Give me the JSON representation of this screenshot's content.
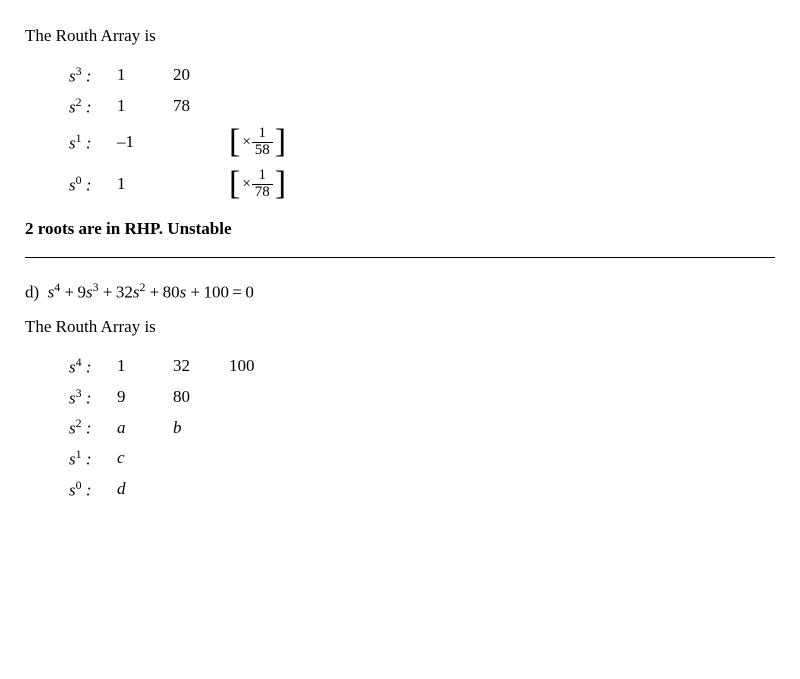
{
  "part_c": {
    "heading": "The Routh Array is",
    "rows": [
      {
        "power_base": "s",
        "power_exp": "3",
        "c1": "1",
        "c2": "20",
        "note_num": "",
        "note_den": ""
      },
      {
        "power_base": "s",
        "power_exp": "2",
        "c1": "1",
        "c2": "78",
        "note_num": "",
        "note_den": ""
      },
      {
        "power_base": "s",
        "power_exp": "1",
        "c1": "–1",
        "c2": "",
        "note_num": "1",
        "note_den": "58"
      },
      {
        "power_base": "s",
        "power_exp": "0",
        "c1": "1",
        "c2": "",
        "note_num": "1",
        "note_den": "78"
      }
    ],
    "conclusion": "2 roots are in RHP. Unstable"
  },
  "part_d": {
    "label": "d) ",
    "equation_parts": {
      "t1a": "s",
      "t1e": "4",
      "t2c": "+ 9",
      "t2a": "s",
      "t2e": "3",
      "t3c": "+ 32",
      "t3a": "s",
      "t3e": "2",
      "t4": "+ 80",
      "t4a": "s",
      "t5": "+ 100 = 0"
    },
    "heading": "The Routh Array is",
    "rows": [
      {
        "power_base": "s",
        "power_exp": "4",
        "c1": "1",
        "c2": "32",
        "c3": "100"
      },
      {
        "power_base": "s",
        "power_exp": "3",
        "c1": "9",
        "c2": "80",
        "c3": ""
      },
      {
        "power_base": "s",
        "power_exp": "2",
        "c1": "a",
        "c2": "b",
        "c3": "",
        "c1_ital": true,
        "c2_ital": true
      },
      {
        "power_base": "s",
        "power_exp": "1",
        "c1": "c",
        "c2": "",
        "c3": "",
        "c1_ital": true
      },
      {
        "power_base": "s",
        "power_exp": "0",
        "c1": "d",
        "c2": "",
        "c3": "",
        "c1_ital": true
      }
    ]
  }
}
